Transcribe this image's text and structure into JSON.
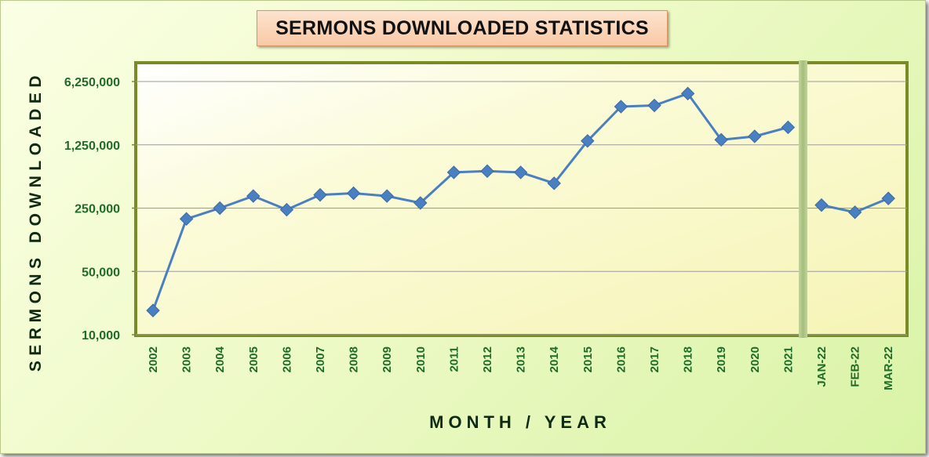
{
  "chart_data": {
    "type": "line",
    "title": "SERMONS DOWNLOADED STATISTICS",
    "xlabel": "MONTH / YEAR",
    "ylabel": "SERMONS DOWNLOADED",
    "y_scale": "log",
    "ylim": [
      10000,
      6250000
    ],
    "yticks": [
      10000,
      50000,
      250000,
      1250000,
      6250000
    ],
    "ytick_labels": [
      "10,000",
      "50,000",
      "250,000",
      "1,250,000",
      "6,250,000"
    ],
    "grid": true,
    "legend": "none",
    "divider_after": "2021",
    "categories": [
      "2002",
      "2003",
      "2004",
      "2005",
      "2006",
      "2007",
      "2008",
      "2009",
      "2010",
      "2011",
      "2012",
      "2013",
      "2014",
      "2015",
      "2016",
      "2017",
      "2018",
      "2019",
      "2020",
      "2021",
      "JAN-22",
      "FEB-22",
      "MAR-22"
    ],
    "values": [
      18500,
      190000,
      250000,
      340000,
      240000,
      350000,
      365000,
      340000,
      285000,
      620000,
      640000,
      620000,
      470000,
      1380000,
      3300000,
      3400000,
      4600000,
      1420000,
      1550000,
      1950000,
      270000,
      225000,
      320000
    ],
    "colors": {
      "line": "#4a7fc1",
      "marker": "#4a7fc1",
      "plot_border": "#7a8a28",
      "divider": "#a9c083",
      "grid": "#9a9a9a"
    }
  }
}
